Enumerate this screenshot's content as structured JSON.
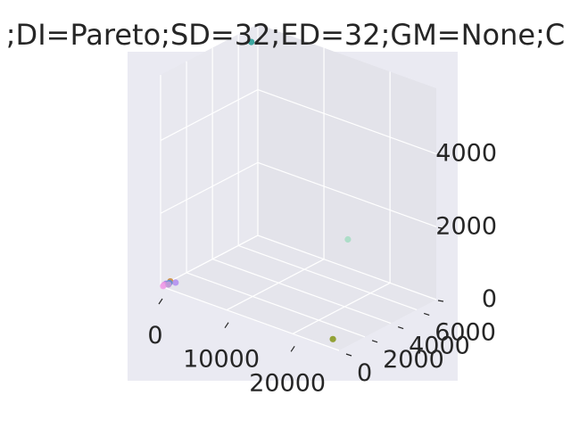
{
  "chart_data": {
    "type": "scatter",
    "title": ";DI=Pareto;SD=32;ED=32;GM=None;C",
    "projection": "3d",
    "grid": true,
    "xlim": [
      0,
      27000
    ],
    "ylim": [
      0,
      7500
    ],
    "zlim": [
      0,
      5800
    ],
    "x_ticks": [
      0,
      10000,
      20000
    ],
    "y_ticks": [
      0,
      2000,
      4000,
      6000
    ],
    "z_ticks": [
      0,
      2000,
      4000
    ],
    "x_tick_labels": [
      "0",
      "10000",
      "20000"
    ],
    "y_tick_labels": [
      "0",
      "2000",
      "4000",
      "6000"
    ],
    "z_tick_labels": [
      "0",
      "2000",
      "4000"
    ],
    "points": [
      {
        "x": 0,
        "y": 7000,
        "z": 5400,
        "color": "#2aa198"
      },
      {
        "x": 15000,
        "y": 6800,
        "z": 1000,
        "color": "#a6dcc4"
      },
      {
        "x": 24500,
        "y": 800,
        "z": 0,
        "color": "#8a9a23"
      },
      {
        "x": 300,
        "y": 600,
        "z": 40,
        "color": "#cd8b3a"
      },
      {
        "x": 900,
        "y": 700,
        "z": 30,
        "color": "#b390f0"
      },
      {
        "x": 400,
        "y": 400,
        "z": 10,
        "color": "#3fa8a0"
      },
      {
        "x": 250,
        "y": 300,
        "z": 30,
        "color": "#9b7fe6"
      },
      {
        "x": 150,
        "y": 200,
        "z": 10,
        "color": "#e88fe0"
      },
      {
        "x": 350,
        "y": 500,
        "z": 20,
        "color": "#5b8fd6"
      },
      {
        "x": 200,
        "y": 100,
        "z": 0,
        "color": "#f0a0e8"
      },
      {
        "x": 500,
        "y": 350,
        "z": 15,
        "color": "#c99bd8"
      }
    ]
  },
  "colors": {
    "pane_background": "#eaeaf2",
    "grid": "#ffffff",
    "text": "#262626"
  }
}
